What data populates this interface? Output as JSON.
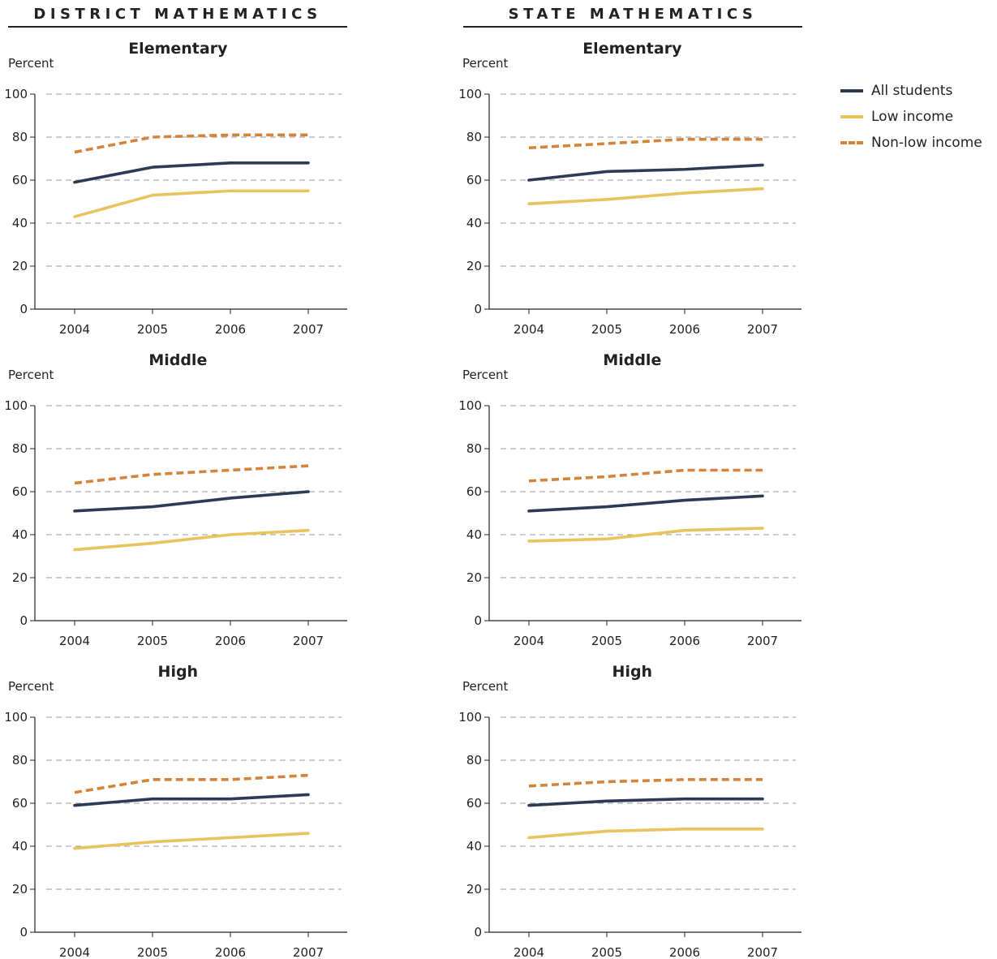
{
  "headers": {
    "district": "DISTRICT MATHEMATICS",
    "state": "STATE MATHEMATICS"
  },
  "legend": {
    "items": [
      {
        "label": "All students",
        "color": "#2d3a55",
        "style": "solid"
      },
      {
        "label": "Low income",
        "color": "#e8c45f",
        "style": "solid"
      },
      {
        "label": "Non-low income",
        "color": "#d4843a",
        "style": "dashed"
      }
    ]
  },
  "chart_data": [
    {
      "type": "line",
      "group": "DISTRICT MATHEMATICS",
      "title": "Elementary",
      "ylabel": "Percent",
      "categories": [
        "2004",
        "2005",
        "2006",
        "2007"
      ],
      "ylim": [
        0,
        100
      ],
      "yticks": [
        0,
        20,
        40,
        60,
        80,
        100
      ],
      "grid": true,
      "series": [
        {
          "name": "All students",
          "values": [
            59,
            66,
            68,
            68
          ]
        },
        {
          "name": "Low income",
          "values": [
            43,
            53,
            55,
            55
          ]
        },
        {
          "name": "Non-low income",
          "values": [
            73,
            80,
            81,
            81
          ]
        }
      ]
    },
    {
      "type": "line",
      "group": "STATE MATHEMATICS",
      "title": "Elementary",
      "ylabel": "Percent",
      "categories": [
        "2004",
        "2005",
        "2006",
        "2007"
      ],
      "ylim": [
        0,
        100
      ],
      "yticks": [
        0,
        20,
        40,
        60,
        80,
        100
      ],
      "grid": true,
      "series": [
        {
          "name": "All students",
          "values": [
            60,
            64,
            65,
            67
          ]
        },
        {
          "name": "Low income",
          "values": [
            49,
            51,
            54,
            56
          ]
        },
        {
          "name": "Non-low income",
          "values": [
            75,
            77,
            79,
            79
          ]
        }
      ]
    },
    {
      "type": "line",
      "group": "DISTRICT MATHEMATICS",
      "title": "Middle",
      "ylabel": "Percent",
      "categories": [
        "2004",
        "2005",
        "2006",
        "2007"
      ],
      "ylim": [
        0,
        100
      ],
      "yticks": [
        0,
        20,
        40,
        60,
        80,
        100
      ],
      "grid": true,
      "series": [
        {
          "name": "All students",
          "values": [
            51,
            53,
            57,
            60
          ]
        },
        {
          "name": "Low income",
          "values": [
            33,
            36,
            40,
            42
          ]
        },
        {
          "name": "Non-low income",
          "values": [
            64,
            68,
            70,
            72
          ]
        }
      ]
    },
    {
      "type": "line",
      "group": "STATE MATHEMATICS",
      "title": "Middle",
      "ylabel": "Percent",
      "categories": [
        "2004",
        "2005",
        "2006",
        "2007"
      ],
      "ylim": [
        0,
        100
      ],
      "yticks": [
        0,
        20,
        40,
        60,
        80,
        100
      ],
      "grid": true,
      "series": [
        {
          "name": "All students",
          "values": [
            51,
            53,
            56,
            58
          ]
        },
        {
          "name": "Low income",
          "values": [
            37,
            38,
            42,
            43
          ]
        },
        {
          "name": "Non-low income",
          "values": [
            65,
            67,
            70,
            70
          ]
        }
      ]
    },
    {
      "type": "line",
      "group": "DISTRICT MATHEMATICS",
      "title": "High",
      "ylabel": "Percent",
      "categories": [
        "2004",
        "2005",
        "2006",
        "2007"
      ],
      "ylim": [
        0,
        100
      ],
      "yticks": [
        0,
        20,
        40,
        60,
        80,
        100
      ],
      "grid": true,
      "series": [
        {
          "name": "All students",
          "values": [
            59,
            62,
            62,
            64
          ]
        },
        {
          "name": "Low income",
          "values": [
            39,
            42,
            44,
            46
          ]
        },
        {
          "name": "Non-low income",
          "values": [
            65,
            71,
            71,
            73
          ]
        }
      ]
    },
    {
      "type": "line",
      "group": "STATE MATHEMATICS",
      "title": "High",
      "ylabel": "Percent",
      "categories": [
        "2004",
        "2005",
        "2006",
        "2007"
      ],
      "ylim": [
        0,
        100
      ],
      "yticks": [
        0,
        20,
        40,
        60,
        80,
        100
      ],
      "grid": true,
      "series": [
        {
          "name": "All students",
          "values": [
            59,
            61,
            62,
            62
          ]
        },
        {
          "name": "Low income",
          "values": [
            44,
            47,
            48,
            48
          ]
        },
        {
          "name": "Non-low income",
          "values": [
            68,
            70,
            71,
            71
          ]
        }
      ]
    }
  ]
}
